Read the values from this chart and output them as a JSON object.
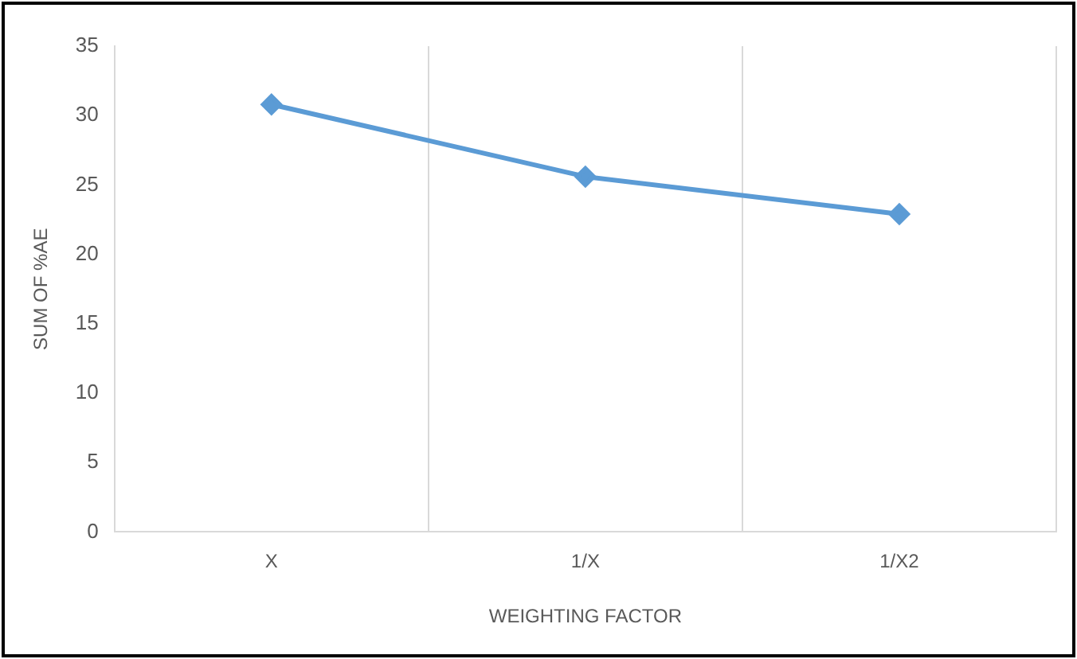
{
  "chart_data": {
    "type": "line",
    "xlabel": "WEIGHTING FACTOR",
    "ylabel": "SUM OF %AE",
    "categories": [
      "X",
      "1/X",
      "1/X2"
    ],
    "series": [
      {
        "color": "#5b9bd5",
        "values": [
          30.8,
          25.6,
          22.9
        ]
      }
    ],
    "ylim": [
      0,
      35
    ],
    "yticks": [
      0,
      5,
      10,
      15,
      20,
      25,
      30,
      35
    ],
    "grid": "x",
    "legend": false,
    "marker": "diamond",
    "line_style": "solid"
  }
}
